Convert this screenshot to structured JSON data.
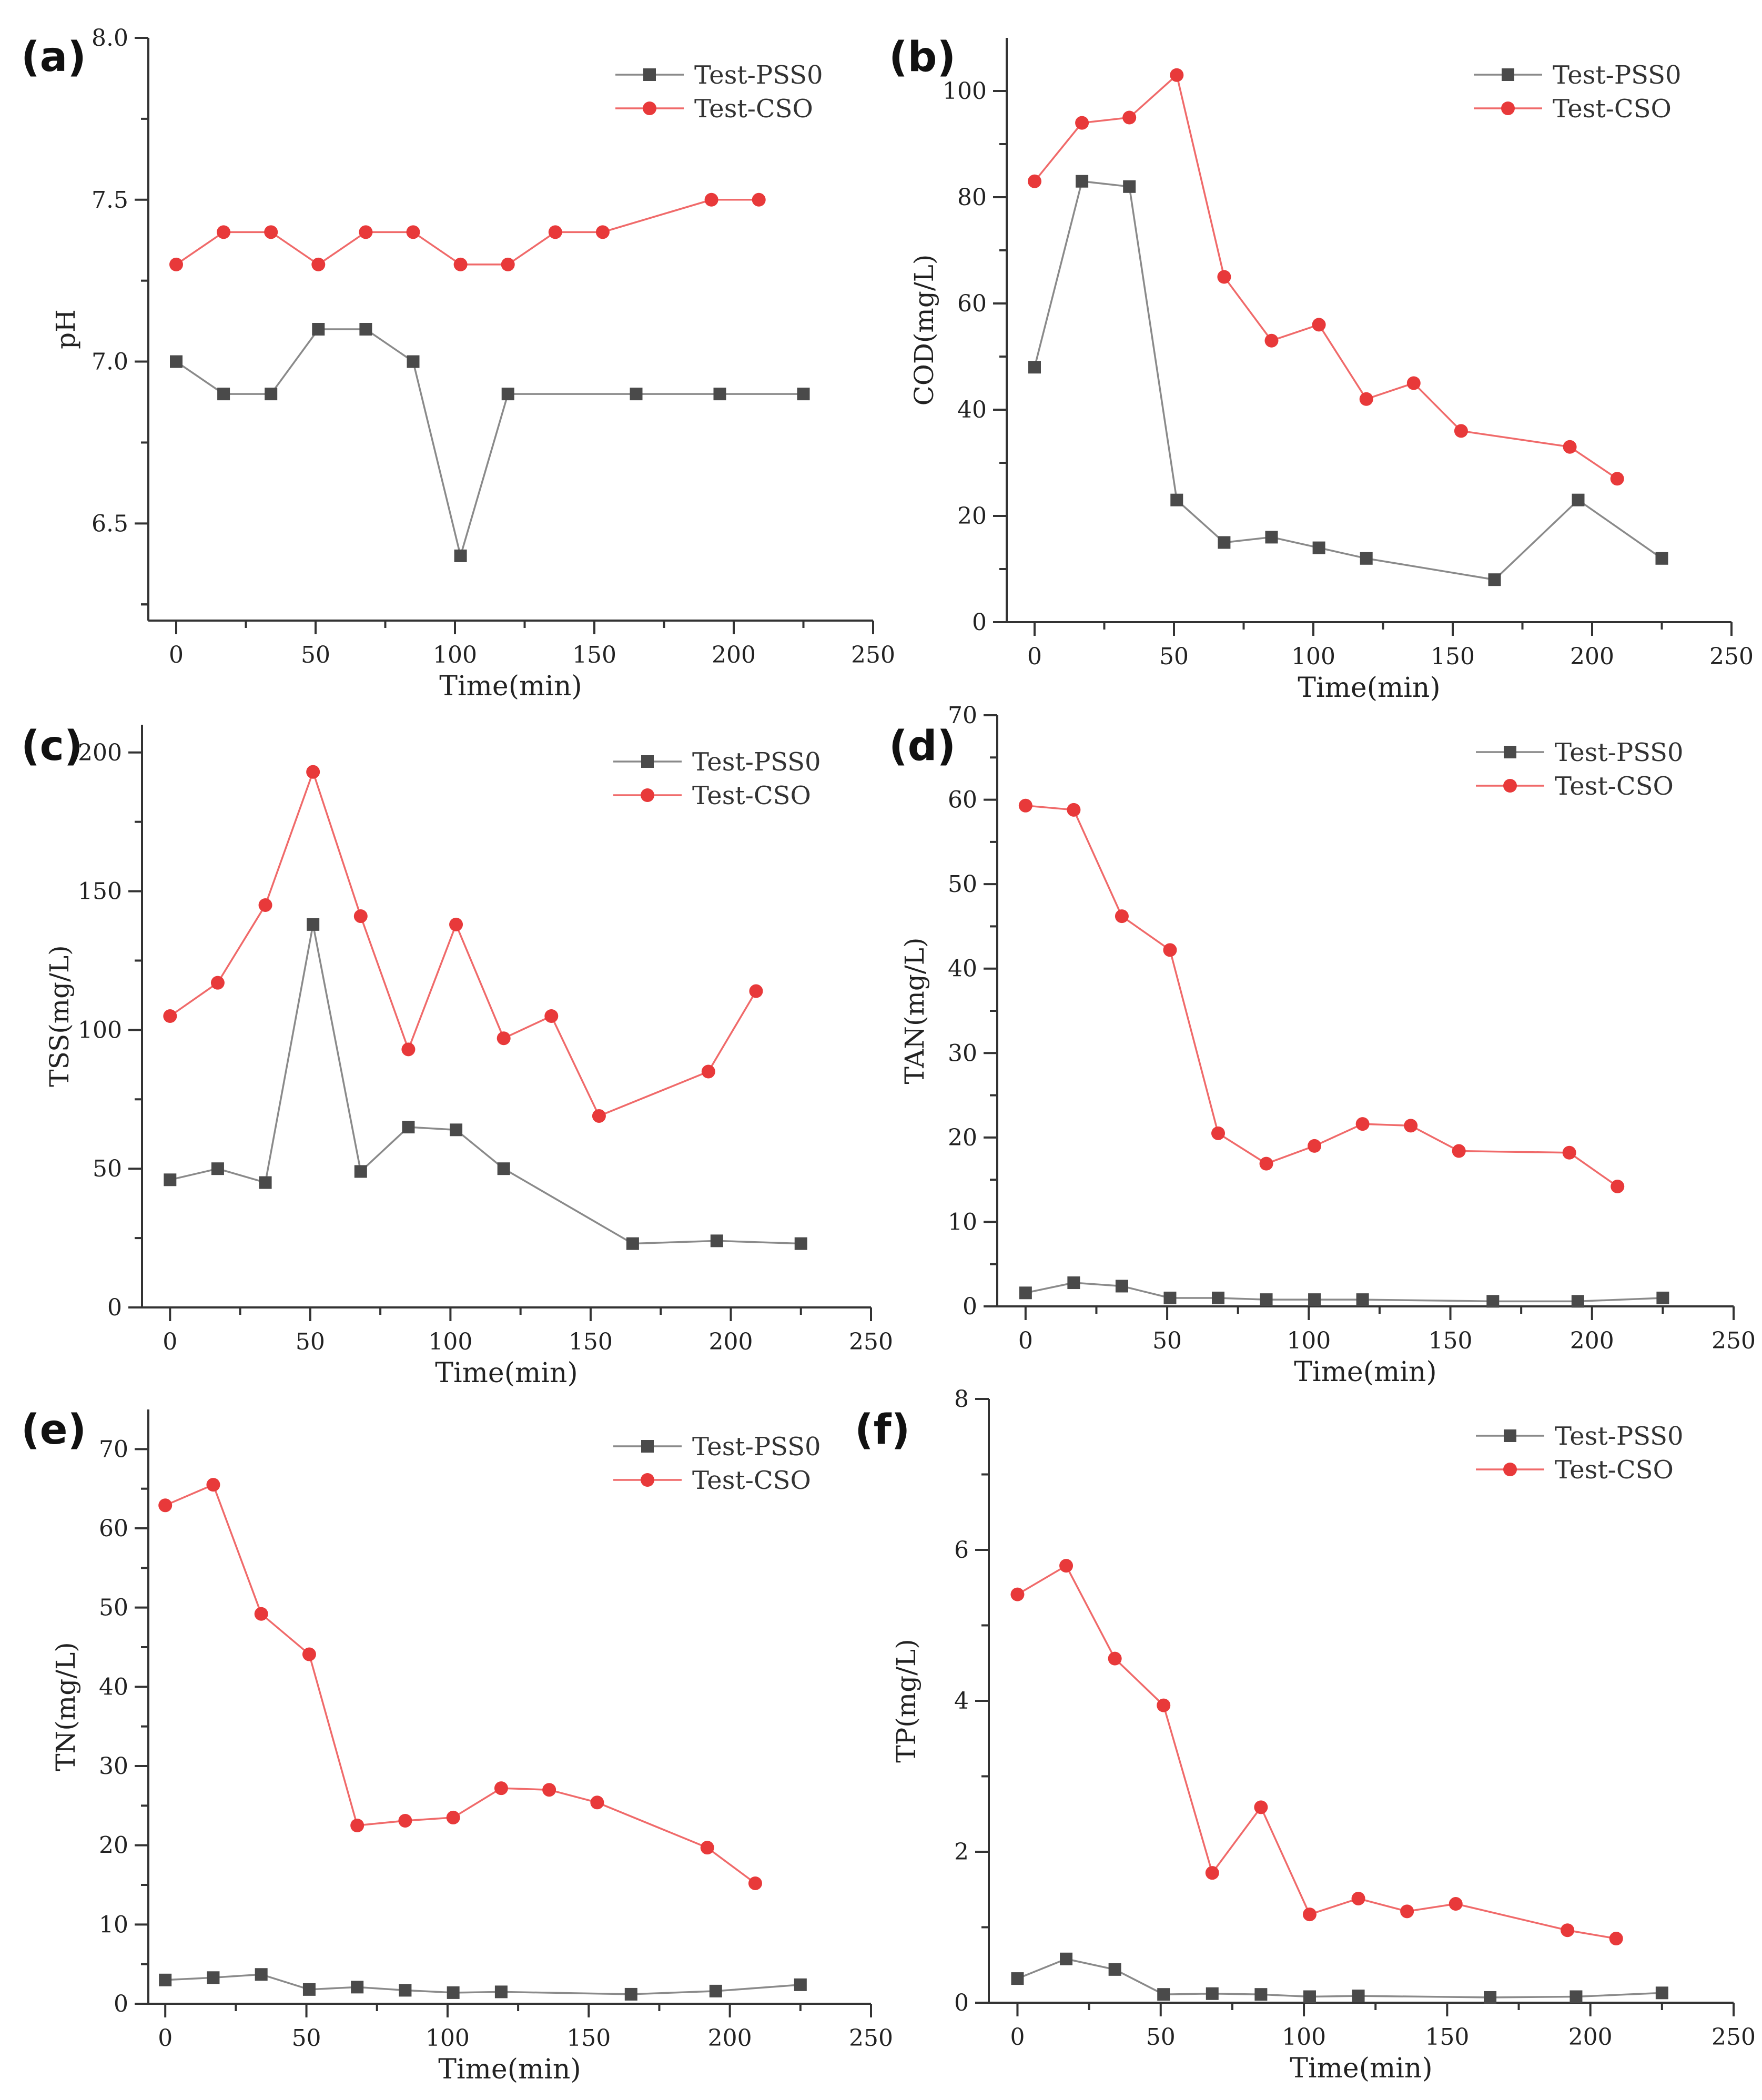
{
  "colors": {
    "pss0": "#4a4a4a",
    "pss0_line": "#8a8a8a",
    "cso": "#e8393a",
    "cso_line": "#f06a6a",
    "axis": "#333333"
  },
  "chart_data": [
    {
      "id": "a",
      "panel_label": "(a)",
      "type": "line",
      "xlabel": "Time(min)",
      "ylabel": "pH",
      "xlim": [
        -10,
        250
      ],
      "ylim": [
        6.2,
        8.0
      ],
      "x_ticks": [
        0,
        50,
        100,
        150,
        200,
        250
      ],
      "x_tick_labels": [
        "0",
        "50",
        "100",
        "150",
        "200",
        "250"
      ],
      "y_ticks": [
        6.5,
        7.0,
        7.5,
        8.0
      ],
      "y_tick_labels": [
        "6.5",
        "7.0",
        "7.5",
        "8.0"
      ],
      "legend_position": "top-right",
      "series": [
        {
          "name": "Test-PSS0",
          "marker": "square",
          "x": [
            0,
            17,
            34,
            51,
            68,
            85,
            102,
            119,
            165,
            195,
            225
          ],
          "y": [
            7.0,
            6.9,
            6.9,
            7.1,
            7.1,
            7.0,
            6.4,
            6.9,
            6.9,
            6.9,
            6.9
          ]
        },
        {
          "name": "Test-CSO",
          "marker": "circle",
          "x": [
            0,
            17,
            34,
            51,
            68,
            85,
            102,
            119,
            136,
            153,
            192,
            209
          ],
          "y": [
            7.3,
            7.4,
            7.4,
            7.3,
            7.4,
            7.4,
            7.3,
            7.3,
            7.4,
            7.4,
            7.5,
            7.5
          ]
        }
      ]
    },
    {
      "id": "b",
      "panel_label": "(b)",
      "type": "line",
      "xlabel": "Time(min)",
      "ylabel": "COD(mg/L)",
      "xlim": [
        -10,
        250
      ],
      "ylim": [
        0,
        110
      ],
      "x_ticks": [
        0,
        50,
        100,
        150,
        200,
        250
      ],
      "x_tick_labels": [
        "0",
        "50",
        "100",
        "150",
        "200",
        "250"
      ],
      "y_ticks": [
        0,
        20,
        40,
        60,
        80,
        100
      ],
      "y_tick_labels": [
        "0",
        "20",
        "40",
        "60",
        "80",
        "100"
      ],
      "legend_position": "top-right",
      "series": [
        {
          "name": "Test-PSS0",
          "marker": "square",
          "x": [
            0,
            17,
            34,
            51,
            68,
            85,
            102,
            119,
            165,
            195,
            225
          ],
          "y": [
            48,
            83,
            82,
            23,
            15,
            16,
            14,
            12,
            8,
            23,
            12
          ]
        },
        {
          "name": "Test-CSO",
          "marker": "circle",
          "x": [
            0,
            17,
            34,
            51,
            68,
            85,
            102,
            119,
            136,
            153,
            192,
            209
          ],
          "y": [
            83,
            94,
            95,
            103,
            65,
            53,
            56,
            42,
            45,
            36,
            33,
            27
          ]
        }
      ]
    },
    {
      "id": "c",
      "panel_label": "(c)",
      "type": "line",
      "xlabel": "Time(min)",
      "ylabel": "TSS(mg/L)",
      "xlim": [
        -10,
        250
      ],
      "ylim": [
        0,
        210
      ],
      "x_ticks": [
        0,
        50,
        100,
        150,
        200,
        250
      ],
      "x_tick_labels": [
        "0",
        "50",
        "100",
        "150",
        "200",
        "250"
      ],
      "y_ticks": [
        0,
        50,
        100,
        150,
        200
      ],
      "y_tick_labels": [
        "0",
        "50",
        "100",
        "150",
        "200"
      ],
      "legend_position": "top-right",
      "series": [
        {
          "name": "Test-PSS0",
          "marker": "square",
          "x": [
            0,
            17,
            34,
            51,
            68,
            85,
            102,
            119,
            165,
            195,
            225
          ],
          "y": [
            46,
            50,
            45,
            138,
            49,
            65,
            64,
            50,
            23,
            24,
            23
          ]
        },
        {
          "name": "Test-CSO",
          "marker": "circle",
          "x": [
            0,
            17,
            34,
            51,
            68,
            85,
            102,
            119,
            136,
            153,
            192,
            209
          ],
          "y": [
            105,
            117,
            145,
            193,
            141,
            93,
            138,
            97,
            105,
            69,
            85,
            114
          ]
        }
      ]
    },
    {
      "id": "d",
      "panel_label": "(d)",
      "type": "line",
      "xlabel": "Time(min)",
      "ylabel": "TAN(mg/L)",
      "xlim": [
        -10,
        250
      ],
      "ylim": [
        0,
        70
      ],
      "x_ticks": [
        0,
        50,
        100,
        150,
        200,
        250
      ],
      "x_tick_labels": [
        "0",
        "50",
        "100",
        "150",
        "200",
        "250"
      ],
      "y_ticks": [
        0,
        10,
        20,
        30,
        40,
        50,
        60,
        70
      ],
      "y_tick_labels": [
        "0",
        "10",
        "20",
        "30",
        "40",
        "50",
        "60",
        "70"
      ],
      "legend_position": "top-right",
      "series": [
        {
          "name": "Test-PSS0",
          "marker": "square",
          "x": [
            0,
            17,
            34,
            51,
            68,
            85,
            102,
            119,
            165,
            195,
            225
          ],
          "y": [
            1.6,
            2.8,
            2.4,
            1.0,
            1.0,
            0.8,
            0.8,
            0.8,
            0.6,
            0.6,
            1.0
          ]
        },
        {
          "name": "Test-CSO",
          "marker": "circle",
          "x": [
            0,
            17,
            34,
            51,
            68,
            85,
            102,
            119,
            136,
            153,
            192,
            209
          ],
          "y": [
            59.3,
            58.8,
            46.2,
            42.2,
            20.5,
            16.9,
            19.0,
            21.6,
            21.4,
            18.4,
            18.2,
            14.2
          ]
        }
      ]
    },
    {
      "id": "e",
      "panel_label": "(e)",
      "type": "line",
      "xlabel": "Time(min)",
      "ylabel": "TN(mg/L)",
      "xlim": [
        -6,
        250
      ],
      "ylim": [
        0,
        75
      ],
      "x_ticks": [
        0,
        50,
        100,
        150,
        200,
        250
      ],
      "x_tick_labels": [
        "0",
        "50",
        "100",
        "150",
        "200",
        "250"
      ],
      "y_ticks": [
        0,
        10,
        20,
        30,
        40,
        50,
        60,
        70
      ],
      "y_tick_labels": [
        "0",
        "10",
        "20",
        "30",
        "40",
        "50",
        "60",
        "70"
      ],
      "legend_position": "top-right",
      "series": [
        {
          "name": "Test-PSS0",
          "marker": "square",
          "x": [
            0,
            17,
            34,
            51,
            68,
            85,
            102,
            119,
            165,
            195,
            225
          ],
          "y": [
            3.0,
            3.3,
            3.7,
            1.8,
            2.1,
            1.7,
            1.4,
            1.5,
            1.2,
            1.6,
            2.4
          ]
        },
        {
          "name": "Test-CSO",
          "marker": "circle",
          "x": [
            0,
            17,
            34,
            51,
            68,
            85,
            102,
            119,
            136,
            153,
            192,
            209
          ],
          "y": [
            62.9,
            65.5,
            49.2,
            44.1,
            22.5,
            23.1,
            23.5,
            27.2,
            27.0,
            25.4,
            19.7,
            15.2
          ]
        }
      ]
    },
    {
      "id": "f",
      "panel_label": "(f)",
      "type": "line",
      "xlabel": "Time(min)",
      "ylabel": "TP(mg/L)",
      "xlim": [
        -10,
        250
      ],
      "ylim": [
        0,
        8
      ],
      "x_ticks": [
        0,
        50,
        100,
        150,
        200,
        250
      ],
      "x_tick_labels": [
        "0",
        "50",
        "100",
        "150",
        "200",
        "250"
      ],
      "y_ticks": [
        0,
        2,
        4,
        6,
        8
      ],
      "y_tick_labels": [
        "0",
        "2",
        "4",
        "6",
        "8"
      ],
      "legend_position": "top-right",
      "series": [
        {
          "name": "Test-PSS0",
          "marker": "square",
          "x": [
            0,
            17,
            34,
            51,
            68,
            85,
            102,
            119,
            165,
            195,
            225
          ],
          "y": [
            0.32,
            0.58,
            0.44,
            0.11,
            0.12,
            0.11,
            0.08,
            0.09,
            0.07,
            0.08,
            0.13
          ]
        },
        {
          "name": "Test-CSO",
          "marker": "circle",
          "x": [
            0,
            17,
            34,
            51,
            68,
            85,
            102,
            119,
            136,
            153,
            192,
            209
          ],
          "y": [
            5.41,
            5.79,
            4.56,
            3.94,
            1.72,
            2.59,
            1.17,
            1.38,
            1.21,
            1.31,
            0.96,
            0.85
          ]
        }
      ]
    }
  ]
}
